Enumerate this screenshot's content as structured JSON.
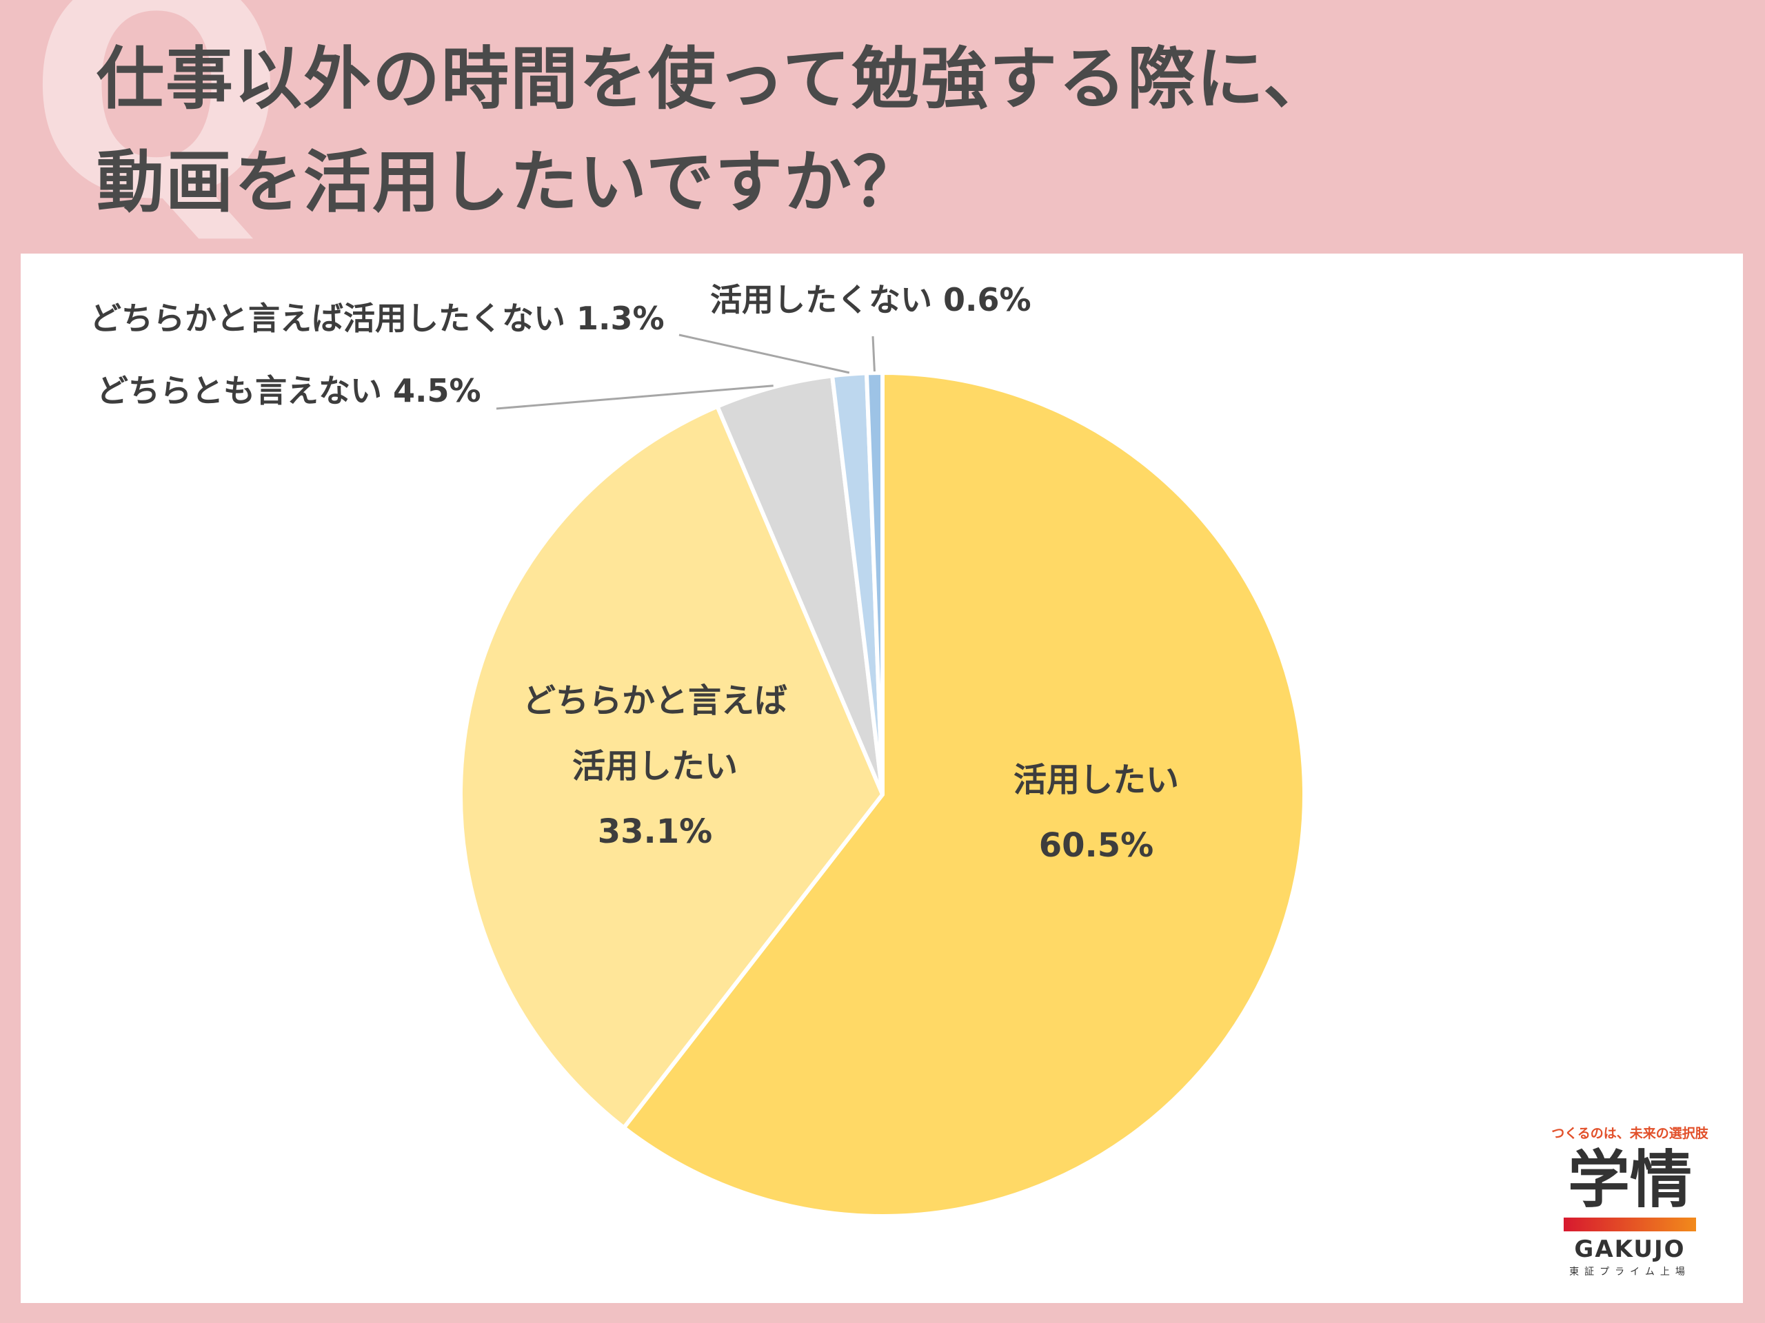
{
  "title": {
    "line1": "仕事以外の時間を使って勉強する際に、",
    "line2": "動画を活用したいですか？"
  },
  "q_mark": "Q",
  "chart_data": {
    "type": "pie",
    "start_angle_deg": 0,
    "direction": "clockwise",
    "slices": [
      {
        "label": "活用したい",
        "value": 60.5,
        "display": "60.5%",
        "color": "#ffd966"
      },
      {
        "label": "どちらかと言えば\n活用したい",
        "value": 33.1,
        "display": "33.1%",
        "color": "#ffe699"
      },
      {
        "label": "どちらとも言えない",
        "value": 4.5,
        "display": "4.5%",
        "color": "#d9d9d9"
      },
      {
        "label": "どちらかと言えば活用したくない",
        "value": 1.3,
        "display": "1.3%",
        "color": "#bdd7ee"
      },
      {
        "label": "活用したくない",
        "value": 0.6,
        "display": "0.6%",
        "color": "#9dc3e6"
      }
    ]
  },
  "logo": {
    "tagline": "つくるのは、未来の選択肢",
    "kanji": "学情",
    "roman": "GAKUJO",
    "sub": "東証プライム上場"
  }
}
